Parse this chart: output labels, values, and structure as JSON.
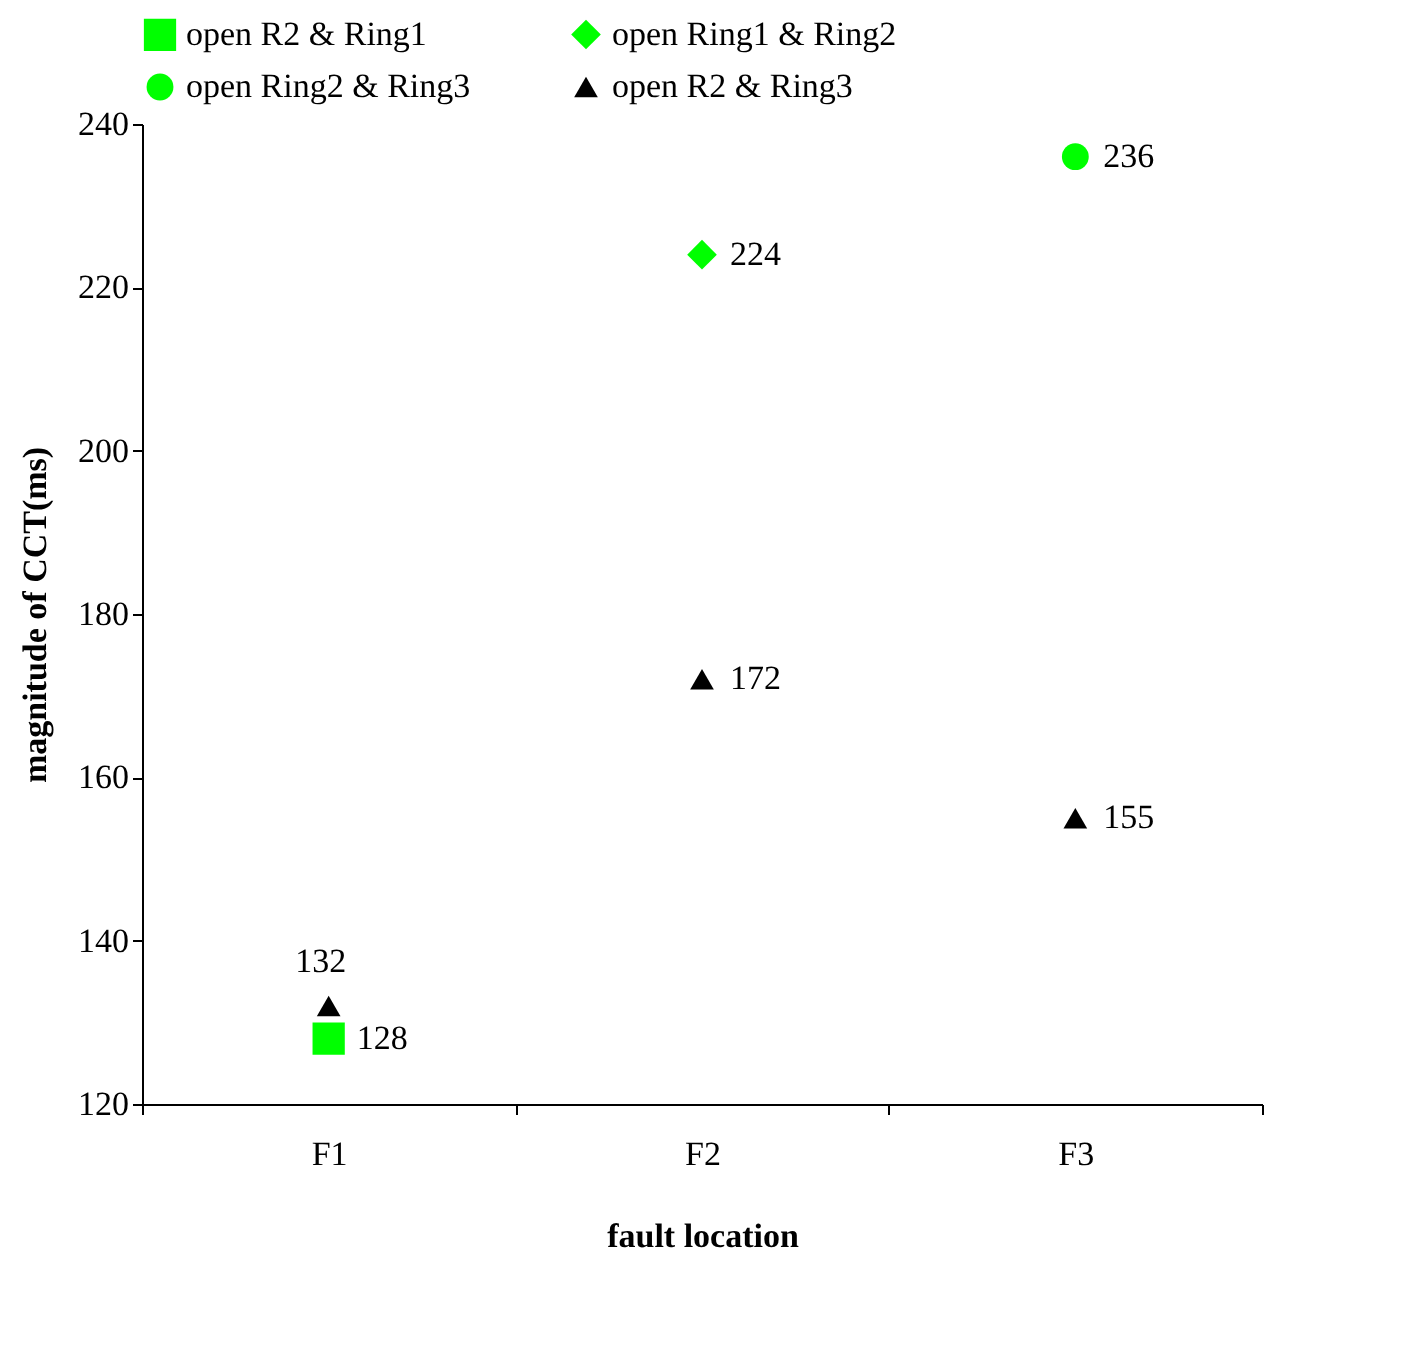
{
  "chart_data": {
    "type": "scatter",
    "xlabel": "fault location",
    "ylabel": "magnitude of CCT(ms)",
    "categories": [
      "F1",
      "F2",
      "F3"
    ],
    "ylim": [
      120,
      240
    ],
    "yticks": [
      120,
      140,
      160,
      180,
      200,
      220,
      240
    ],
    "grid": false,
    "legend": "top",
    "data_labels": true,
    "series": [
      {
        "name": "open R2  &  Ring1",
        "color": "#00ff00",
        "marker": "square",
        "values": [
          128,
          null,
          null
        ]
      },
      {
        "name": "open Ring1  &  Ring2",
        "color": "#00ff00",
        "marker": "diamond",
        "values": [
          null,
          224,
          null
        ]
      },
      {
        "name": "open Ring2  &  Ring3",
        "color": "#00ff00",
        "marker": "circle",
        "values": [
          null,
          null,
          236
        ]
      },
      {
        "name": "open R2  &  Ring3",
        "color": "#000000",
        "marker": "triangle",
        "values": [
          132,
          172,
          155
        ]
      }
    ]
  }
}
